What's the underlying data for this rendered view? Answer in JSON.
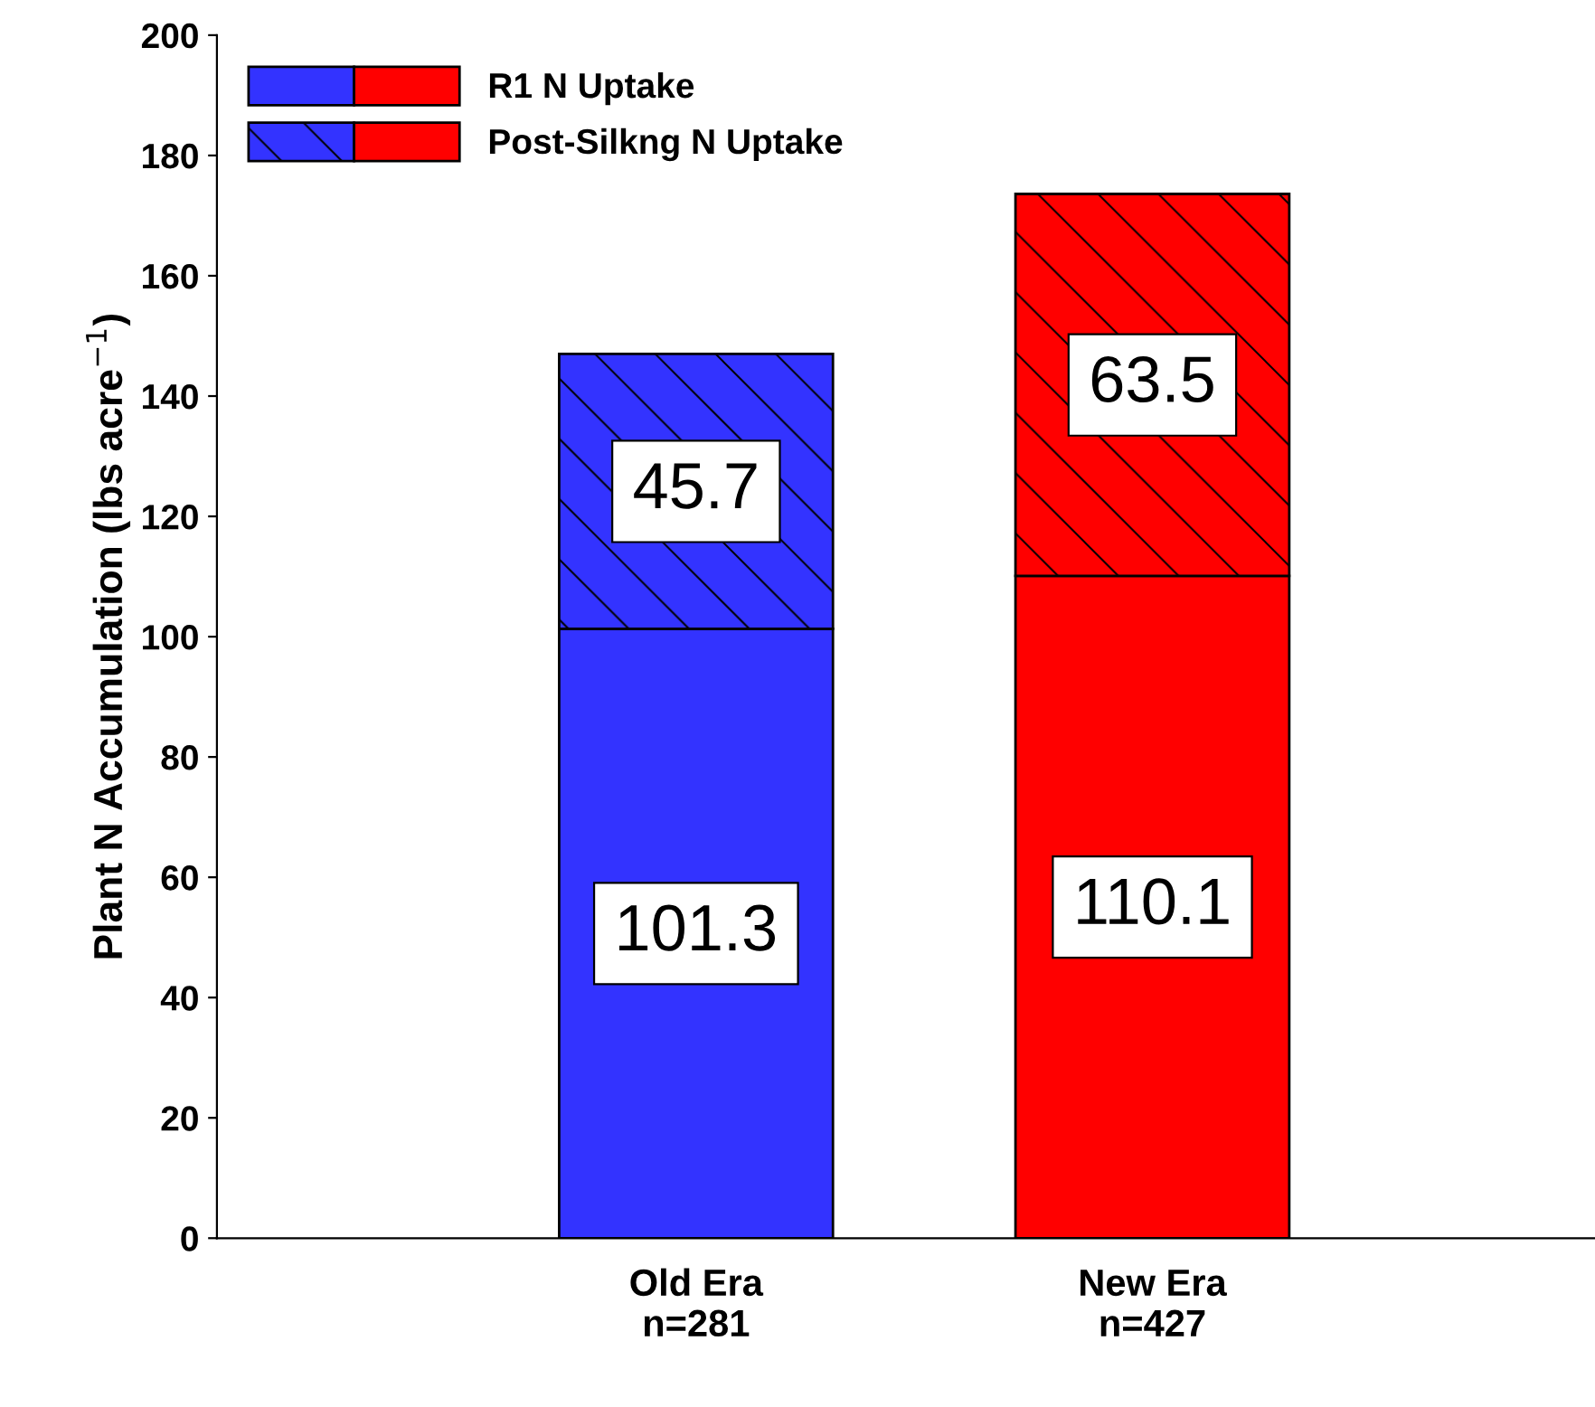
{
  "chart_data": {
    "type": "bar",
    "stacked": true,
    "ylabel": "Plant N Accumulation (lbs acre$^{−1}$)",
    "categories": [
      "Old Era\nn=281",
      "New Era\nn=427"
    ],
    "series": [
      {
        "name": "R1 N Uptake",
        "colors": [
          "#3333ff",
          "#ff0000"
        ],
        "values": [
          101.3,
          110.1
        ]
      },
      {
        "name": "Post-Silkng N Uptake",
        "colors": [
          "#3333ff",
          "#ff0000"
        ],
        "values": [
          45.7,
          63.5
        ]
      }
    ],
    "ylim": [
      0,
      200
    ],
    "yticks": [
      0,
      20,
      40,
      60,
      80,
      100,
      120,
      140,
      160,
      180,
      200
    ],
    "data_labels": true,
    "legend": "top left",
    "grid": false
  }
}
